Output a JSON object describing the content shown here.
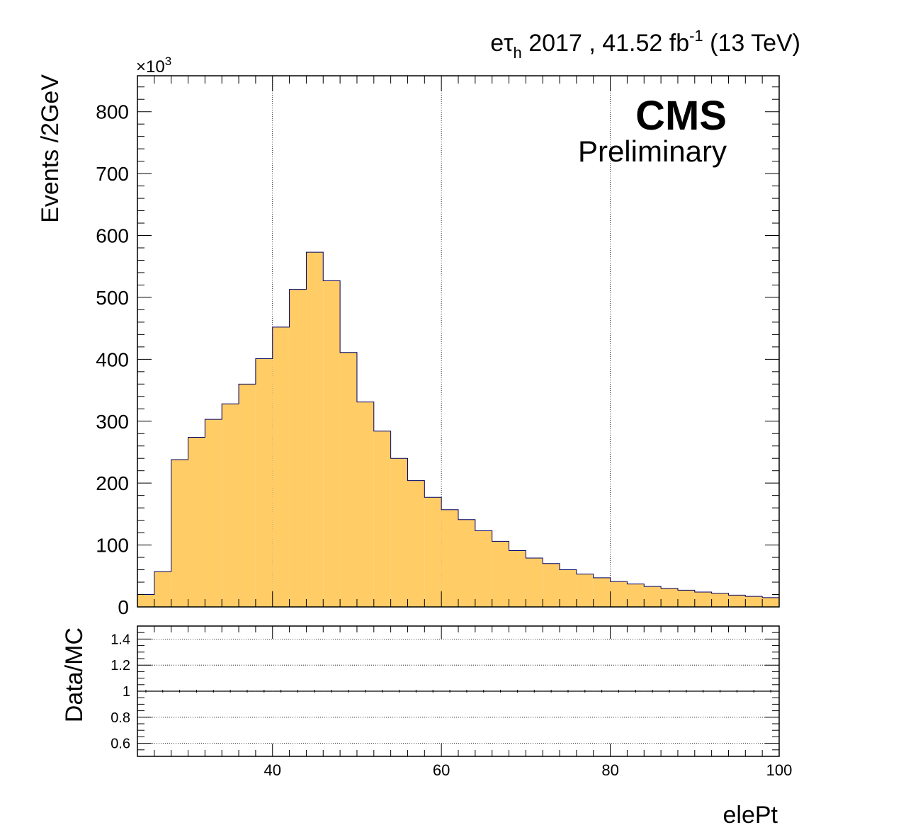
{
  "header": {
    "channel_e": "e",
    "channel_tau": "τ",
    "channel_sub": "h",
    "year": " 2017 , 41.52 fb",
    "lumi_exp": "-1",
    "energy": " (13 TeV)"
  },
  "cms": {
    "label": "CMS",
    "sublabel": "Preliminary"
  },
  "chart_data": [
    {
      "type": "bar",
      "role": "main",
      "xlabel": "elePt",
      "ylabel": "Events /2GeV",
      "y_scale_factor": "×10",
      "y_scale_exp": "3",
      "xlim": [
        24,
        100
      ],
      "ylim": [
        0,
        858
      ],
      "x_ticks": [
        40,
        60,
        80,
        100
      ],
      "y_ticks": [
        0,
        100,
        200,
        300,
        400,
        500,
        600,
        700,
        800
      ],
      "grid": "x",
      "bin_width": 2,
      "x": [
        24,
        26,
        28,
        30,
        32,
        34,
        36,
        38,
        40,
        42,
        44,
        46,
        48,
        50,
        52,
        54,
        56,
        58,
        60,
        62,
        64,
        66,
        68,
        70,
        72,
        74,
        76,
        78,
        80,
        82,
        84,
        86,
        88,
        90,
        92,
        94,
        96,
        98
      ],
      "values": [
        20,
        57,
        238,
        274,
        303,
        328,
        360,
        401,
        452,
        513,
        573,
        527,
        411,
        331,
        284,
        240,
        204,
        177,
        157,
        141,
        123,
        106,
        91,
        79,
        70,
        60,
        53,
        47,
        41,
        37,
        33,
        30,
        27,
        24,
        22,
        19,
        17,
        15
      ],
      "fill_color": "#ffcc66",
      "line_color": "#000066"
    },
    {
      "type": "line",
      "role": "ratio",
      "ylabel": "Data/MC",
      "xlim": [
        24,
        100
      ],
      "ylim": [
        0.5,
        1.5
      ],
      "y_ticks": [
        0.6,
        0.8,
        1,
        1.2,
        1.4
      ],
      "y_tick_labels": [
        "0.6",
        "0.8",
        "1",
        "1.2",
        "1.4"
      ],
      "x_ticks": [
        40,
        60,
        80,
        100
      ],
      "grid": "y",
      "x": [
        25,
        27,
        29,
        31,
        33,
        35,
        37,
        39,
        41,
        43,
        45,
        47,
        49,
        51,
        53,
        55,
        57,
        59,
        61,
        63,
        65,
        67,
        69,
        71,
        73,
        75,
        77,
        79,
        81,
        83,
        85,
        87,
        89,
        91,
        93,
        95,
        97,
        99
      ],
      "values": [
        1,
        1,
        1,
        1,
        1,
        1,
        1,
        1,
        1,
        1,
        1,
        1,
        1,
        1,
        1,
        1,
        1,
        1,
        1,
        1,
        1,
        1,
        1,
        1,
        1,
        1,
        1,
        1,
        1,
        1,
        1,
        1,
        1,
        1,
        1,
        1,
        1,
        1
      ]
    }
  ]
}
